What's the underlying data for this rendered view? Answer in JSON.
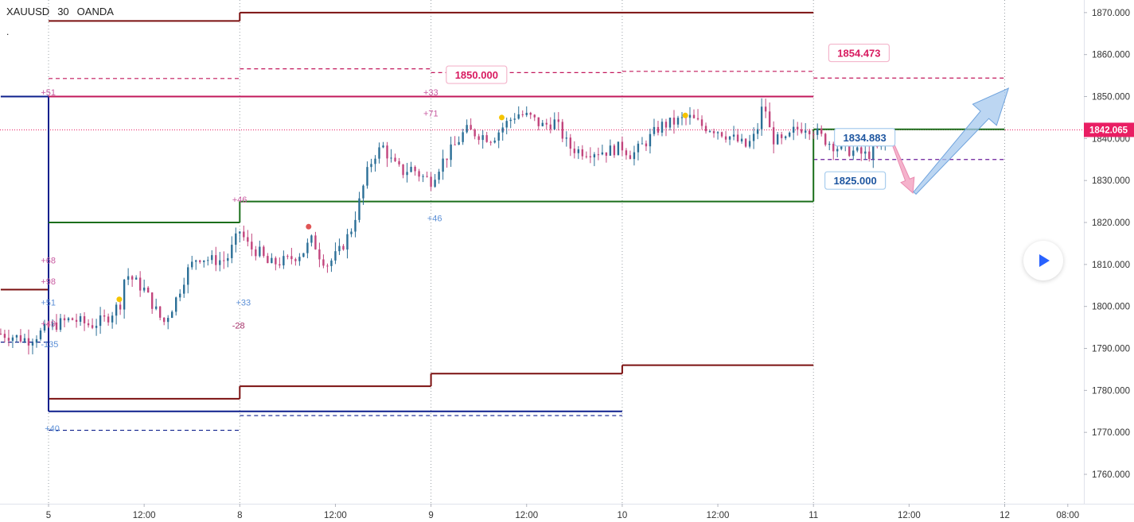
{
  "header": {
    "symbol": "XAUUSD",
    "interval": "30",
    "exchange": "OANDA",
    "sub": "."
  },
  "play_button": {
    "icon": "play-icon"
  },
  "chart_data": {
    "type": "candlestick",
    "ylim": [
      1753,
      1873
    ],
    "y_ticks": [
      "1870.000",
      "1860.000",
      "1850.000",
      "1840.000",
      "1830.000",
      "1820.000",
      "1810.000",
      "1800.000",
      "1790.000",
      "1780.000",
      "1770.000",
      "1760.000"
    ],
    "y_tick_values": [
      1870,
      1860,
      1850,
      1840,
      1830,
      1820,
      1810,
      1800,
      1790,
      1780,
      1770,
      1760
    ],
    "x_ticks": [
      "5",
      "12:00",
      "8",
      "12:00",
      "9",
      "12:00",
      "10",
      "12:00",
      "11",
      "12:00",
      "12",
      "08:00"
    ],
    "x_tick_t": [
      0,
      0.5,
      1,
      1.5,
      2,
      2.5,
      3,
      3.5,
      4,
      4.5,
      5,
      5.33
    ],
    "day_separators": [
      0,
      1,
      2,
      3,
      4,
      5
    ],
    "last_price": {
      "value": 1842.065,
      "label": "1842.065",
      "color": "#e91e63"
    },
    "levels": [
      {
        "color": "#7b1010",
        "segments": [
          [
            -0.25,
            0,
            1804
          ],
          [
            0,
            1,
            1778
          ],
          [
            1,
            2,
            1781
          ],
          [
            2,
            3,
            1784
          ],
          [
            3,
            4,
            1786
          ],
          [
            0,
            1,
            1868
          ],
          [
            1,
            4,
            1870
          ]
        ]
      },
      {
        "color": "#0d1f8c",
        "segments": [
          [
            -0.25,
            0,
            1850
          ],
          [
            0,
            3,
            1775
          ]
        ]
      },
      {
        "color": "#c2185b",
        "segments": [
          [
            0,
            4,
            1850
          ]
        ]
      },
      {
        "color": "#1b6e1b",
        "segments": [
          [
            0,
            1,
            1820
          ],
          [
            1,
            4,
            1825
          ],
          [
            4,
            5,
            1842.2
          ]
        ]
      }
    ],
    "dashed_levels": [
      {
        "color": "#c2185b",
        "segments": [
          [
            0,
            1,
            1854.3
          ],
          [
            1,
            2,
            1856.6
          ],
          [
            2,
            3,
            1855.7
          ],
          [
            3,
            4,
            1856
          ],
          [
            4,
            5,
            1854.4
          ]
        ]
      },
      {
        "color": "#0d1f8c",
        "segments": [
          [
            -0.25,
            0,
            1791.5
          ],
          [
            0,
            1,
            1770.5
          ],
          [
            1,
            3,
            1774
          ]
        ]
      },
      {
        "color": "#6a1b9a",
        "segments": [
          [
            4,
            5,
            1835
          ]
        ]
      }
    ],
    "labels": [
      {
        "text": "+51",
        "t": -0.04,
        "price": 1851,
        "color": "#c85aa0"
      },
      {
        "text": "+68",
        "t": -0.04,
        "price": 1811,
        "color": "#c85aa0"
      },
      {
        "text": "+98",
        "t": -0.04,
        "price": 1806,
        "color": "#c85aa0"
      },
      {
        "text": "+51",
        "t": -0.04,
        "price": 1801,
        "color": "#5b8fd6"
      },
      {
        "text": "+49",
        "t": -0.04,
        "price": 1796,
        "color": "#c85aa0"
      },
      {
        "text": "-135",
        "t": -0.04,
        "price": 1791,
        "color": "#5b8fd6"
      },
      {
        "text": "+40",
        "t": -0.02,
        "price": 1771,
        "color": "#5b8fd6"
      },
      {
        "text": "+46",
        "t": 0.96,
        "price": 1825.5,
        "color": "#c85aa0"
      },
      {
        "text": "+33",
        "t": 0.98,
        "price": 1801,
        "color": "#5b8fd6"
      },
      {
        "text": "-28",
        "t": 0.96,
        "price": 1795.5,
        "color": "#a8326a"
      },
      {
        "text": "+33",
        "t": 1.96,
        "price": 1851,
        "color": "#c85aa0"
      },
      {
        "text": "+71",
        "t": 1.96,
        "price": 1846,
        "color": "#c85aa0"
      },
      {
        "text": "+46",
        "t": 1.98,
        "price": 1821,
        "color": "#5b8fd6"
      }
    ],
    "callouts": [
      {
        "text": "1850.000",
        "t": 2.08,
        "price": 1855.2,
        "color": "#d81b60"
      },
      {
        "text": "1854.473",
        "t": 4.08,
        "price": 1860.4,
        "color": "#d81b60"
      },
      {
        "text": "1834.883",
        "t": 4.11,
        "price": 1840.3,
        "color": "#1e56a0"
      },
      {
        "text": "1825.000",
        "t": 4.06,
        "price": 1830,
        "color": "#1e56a0"
      }
    ],
    "markers": [
      {
        "t": 0.37,
        "price": 1801.7,
        "color": "#f5c400"
      },
      {
        "t": 1.36,
        "price": 1819,
        "color": "#e05555"
      },
      {
        "t": 2.37,
        "price": 1845,
        "color": "#f5c400"
      },
      {
        "t": 3.33,
        "price": 1845.5,
        "color": "#f5c400"
      }
    ],
    "arrows": [
      {
        "dir": "down",
        "color": "#f3a6c3",
        "from": [
          4.4,
          1840.5
        ],
        "to": [
          4.52,
          1827
        ]
      },
      {
        "dir": "up",
        "color": "#a6c8ee",
        "from": [
          4.53,
          1827
        ],
        "to": [
          5.02,
          1852
        ]
      }
    ],
    "series": [
      {
        "start": 1793.5,
        "path": [
          [
            -0.25,
            1793.5
          ],
          [
            -0.1,
            1792
          ],
          [
            0.0,
            1795
          ],
          [
            0.12,
            1797
          ],
          [
            0.22,
            1795.5
          ],
          [
            0.3,
            1797
          ],
          [
            0.38,
            1801
          ],
          [
            0.4,
            1808
          ],
          [
            0.45,
            1806
          ],
          [
            0.5,
            1804
          ],
          [
            0.55,
            1800
          ],
          [
            0.6,
            1796
          ],
          [
            0.66,
            1801
          ],
          [
            0.72,
            1808
          ],
          [
            0.78,
            1812
          ],
          [
            0.85,
            1811
          ],
          [
            0.93,
            1811
          ],
          [
            1.0,
            1818
          ],
          [
            1.05,
            1814
          ],
          [
            1.1,
            1813
          ],
          [
            1.15,
            1810
          ],
          [
            1.25,
            1811
          ],
          [
            1.33,
            1813
          ],
          [
            1.38,
            1816
          ],
          [
            1.42,
            1812
          ],
          [
            1.46,
            1810
          ],
          [
            1.52,
            1813
          ],
          [
            1.58,
            1818
          ],
          [
            1.62,
            1824
          ],
          [
            1.66,
            1831
          ],
          [
            1.7,
            1836
          ],
          [
            1.75,
            1838
          ],
          [
            1.8,
            1834
          ],
          [
            1.85,
            1832
          ],
          [
            1.9,
            1833
          ],
          [
            1.95,
            1831
          ],
          [
            2.0,
            1830
          ],
          [
            2.05,
            1834
          ],
          [
            2.12,
            1838
          ],
          [
            2.18,
            1842
          ],
          [
            2.25,
            1841
          ],
          [
            2.32,
            1840
          ],
          [
            2.38,
            1843
          ],
          [
            2.45,
            1846
          ],
          [
            2.52,
            1845
          ],
          [
            2.58,
            1843
          ],
          [
            2.65,
            1844
          ],
          [
            2.72,
            1838
          ],
          [
            2.78,
            1837
          ],
          [
            2.85,
            1837
          ],
          [
            2.92,
            1837
          ],
          [
            3.0,
            1838
          ],
          [
            3.05,
            1836
          ],
          [
            3.12,
            1839
          ],
          [
            3.2,
            1843
          ],
          [
            3.28,
            1844
          ],
          [
            3.35,
            1845
          ],
          [
            3.42,
            1843
          ],
          [
            3.5,
            1842
          ],
          [
            3.58,
            1840
          ],
          [
            3.65,
            1838
          ],
          [
            3.7,
            1841
          ],
          [
            3.74,
            1849
          ],
          [
            3.78,
            1840
          ],
          [
            3.85,
            1839
          ],
          [
            3.9,
            1842
          ],
          [
            3.96,
            1843
          ],
          [
            4.0,
            1842
          ],
          [
            4.05,
            1840
          ],
          [
            4.12,
            1838
          ],
          [
            4.2,
            1837
          ],
          [
            4.28,
            1836
          ],
          [
            4.35,
            1838
          ],
          [
            4.38,
            1840
          ]
        ]
      }
    ]
  }
}
